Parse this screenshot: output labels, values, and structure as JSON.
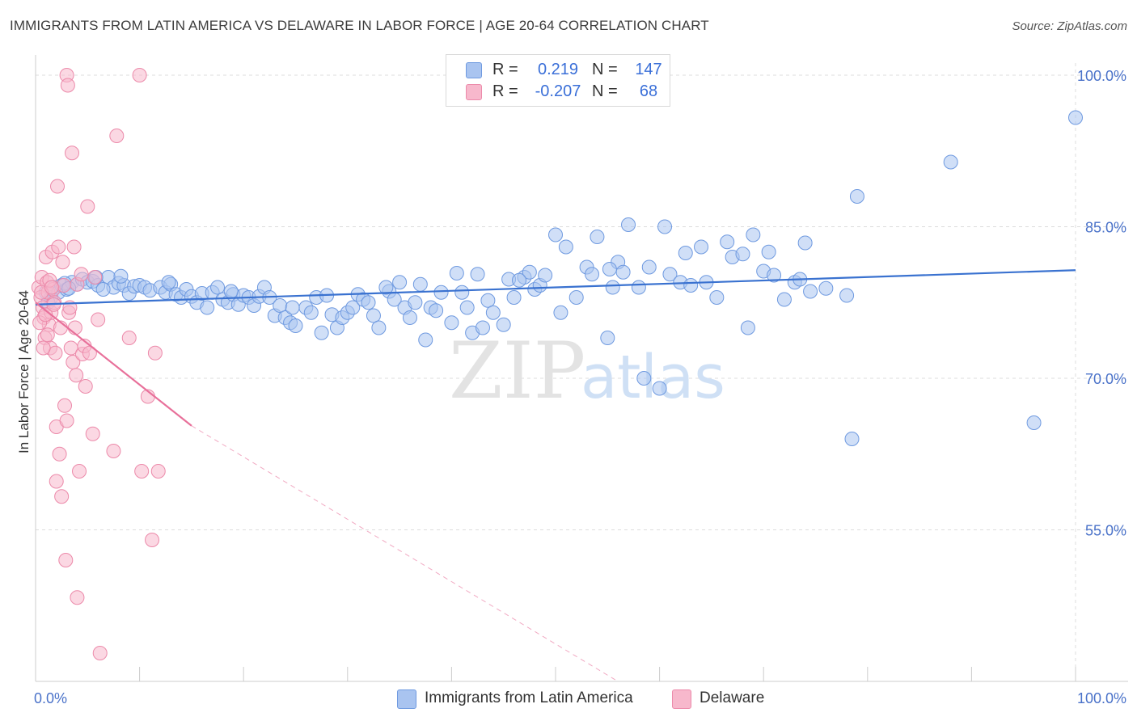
{
  "title": "IMMIGRANTS FROM LATIN AMERICA VS DELAWARE IN LABOR FORCE | AGE 20-64 CORRELATION CHART",
  "source": "Source: ZipAtlas.com",
  "watermark": {
    "zip": "ZIP",
    "atlas": "atlas"
  },
  "legend": {
    "r_label": "R =",
    "n_label": "N =",
    "rows": [
      {
        "r": "0.219",
        "n": "147",
        "color": "#a9c4f0",
        "border": "#6f9ae0"
      },
      {
        "r": "-0.207",
        "n": "68",
        "color": "#f7b8cc",
        "border": "#ec8aaa"
      }
    ]
  },
  "chart_data": {
    "type": "scatter",
    "title": "IMMIGRANTS FROM LATIN AMERICA VS DELAWARE IN LABOR FORCE | AGE 20-64 CORRELATION CHART",
    "xlabel": "",
    "ylabel": "In Labor Force | Age 20-64",
    "xlim": [
      0,
      100
    ],
    "ylim": [
      40,
      102
    ],
    "x_tick_labels": [
      "0.0%",
      "100.0%"
    ],
    "y_ticks": [
      55,
      70,
      85,
      100
    ],
    "y_tick_labels": [
      "55.0%",
      "70.0%",
      "85.0%",
      "100.0%"
    ],
    "grid": true,
    "series": [
      {
        "name": "Immigrants from Latin America",
        "color": "#a9c4f0",
        "edge": "#6f9ae0",
        "trend": {
          "x0": 0,
          "y0": 77.3,
          "x1": 100,
          "y1": 80.7,
          "color": "#3a72d0"
        },
        "points": [
          [
            1,
            78.5
          ],
          [
            1.5,
            78
          ],
          [
            1.8,
            79
          ],
          [
            2.2,
            78.5
          ],
          [
            2.5,
            79.2
          ],
          [
            3,
            78.8
          ],
          [
            3.5,
            79.5
          ],
          [
            4,
            79.3
          ],
          [
            4.5,
            79.8
          ],
          [
            5,
            79.5
          ],
          [
            5.5,
            79.6
          ],
          [
            6,
            79.2
          ],
          [
            7,
            80
          ],
          [
            7.5,
            79
          ],
          [
            8,
            79.4
          ],
          [
            8.5,
            79.2
          ],
          [
            9,
            78.4
          ],
          [
            9.5,
            79.1
          ],
          [
            10,
            79.2
          ],
          [
            10.5,
            79
          ],
          [
            11,
            78.7
          ],
          [
            12,
            79
          ],
          [
            12.5,
            78.5
          ],
          [
            13,
            79.3
          ],
          [
            13.5,
            78.3
          ],
          [
            14,
            78
          ],
          [
            14.5,
            78.8
          ],
          [
            15,
            78.1
          ],
          [
            15.5,
            77.5
          ],
          [
            16,
            78.4
          ],
          [
            16.5,
            77
          ],
          [
            17,
            78.5
          ],
          [
            17.5,
            79
          ],
          [
            18,
            77.8
          ],
          [
            18.5,
            77.5
          ],
          [
            19,
            78.3
          ],
          [
            19.5,
            77.3
          ],
          [
            20,
            78.2
          ],
          [
            20.5,
            78
          ],
          [
            21,
            77.2
          ],
          [
            21.5,
            78.1
          ],
          [
            22,
            79
          ],
          [
            22.5,
            78
          ],
          [
            23,
            76.2
          ],
          [
            23.5,
            77.2
          ],
          [
            24,
            76
          ],
          [
            24.5,
            75.5
          ],
          [
            25,
            75.2
          ],
          [
            26,
            77
          ],
          [
            26.5,
            76.5
          ],
          [
            27,
            78
          ],
          [
            27.5,
            74.5
          ],
          [
            28,
            78.2
          ],
          [
            28.5,
            76.3
          ],
          [
            29,
            75
          ],
          [
            29.5,
            76
          ],
          [
            30,
            76.5
          ],
          [
            30.5,
            77
          ],
          [
            31,
            78.3
          ],
          [
            31.5,
            77.8
          ],
          [
            32,
            77.5
          ],
          [
            32.5,
            76.2
          ],
          [
            33,
            75
          ],
          [
            34,
            78.6
          ],
          [
            34.5,
            77.8
          ],
          [
            35,
            79.5
          ],
          [
            35.5,
            77
          ],
          [
            36,
            76
          ],
          [
            36.5,
            77.5
          ],
          [
            37,
            79.3
          ],
          [
            37.5,
            73.8
          ],
          [
            38,
            77
          ],
          [
            38.5,
            76.7
          ],
          [
            39,
            78.5
          ],
          [
            40,
            75.5
          ],
          [
            41,
            78.5
          ],
          [
            41.5,
            77
          ],
          [
            42,
            74.5
          ],
          [
            42.5,
            80.3
          ],
          [
            43,
            75
          ],
          [
            43.5,
            77.7
          ],
          [
            44,
            76.5
          ],
          [
            45,
            75.3
          ],
          [
            45.5,
            79.8
          ],
          [
            46,
            78
          ],
          [
            47,
            80
          ],
          [
            47.5,
            80.5
          ],
          [
            48,
            78.8
          ],
          [
            48.5,
            79.2
          ],
          [
            49,
            80.2
          ],
          [
            50,
            84.2
          ],
          [
            50.5,
            76.5
          ],
          [
            51,
            83
          ],
          [
            52,
            78
          ],
          [
            53,
            81
          ],
          [
            53.5,
            80.3
          ],
          [
            54,
            84
          ],
          [
            55,
            74
          ],
          [
            55.5,
            79
          ],
          [
            56,
            81.5
          ],
          [
            56.5,
            80.5
          ],
          [
            57,
            85.2
          ],
          [
            58,
            79
          ],
          [
            58.5,
            70
          ],
          [
            59,
            81
          ],
          [
            60,
            69
          ],
          [
            60.5,
            85
          ],
          [
            61,
            80.3
          ],
          [
            62,
            79.5
          ],
          [
            62.5,
            82.4
          ],
          [
            63,
            79.2
          ],
          [
            64,
            83
          ],
          [
            64.5,
            79.5
          ],
          [
            65.5,
            78
          ],
          [
            66.5,
            83.5
          ],
          [
            67,
            82
          ],
          [
            68,
            82.3
          ],
          [
            68.5,
            75
          ],
          [
            69,
            84.2
          ],
          [
            70,
            80.6
          ],
          [
            70.5,
            82.5
          ],
          [
            71,
            80.2
          ],
          [
            72,
            77.8
          ],
          [
            73,
            79.5
          ],
          [
            73.5,
            79.8
          ],
          [
            74,
            83.4
          ],
          [
            74.5,
            78.6
          ],
          [
            76,
            78.9
          ],
          [
            78,
            78.2
          ],
          [
            78.5,
            64
          ],
          [
            79,
            88
          ],
          [
            88,
            91.4
          ],
          [
            96,
            65.6
          ],
          [
            100,
            95.8
          ],
          [
            1.2,
            77.5
          ],
          [
            2.8,
            79.4
          ],
          [
            3.2,
            78.9
          ],
          [
            5.8,
            80
          ],
          [
            6.5,
            78.8
          ],
          [
            8.2,
            80.1
          ],
          [
            12.8,
            79.5
          ],
          [
            18.8,
            78.6
          ],
          [
            24.7,
            77
          ],
          [
            33.7,
            79
          ],
          [
            40.5,
            80.4
          ],
          [
            46.5,
            79.7
          ],
          [
            55.2,
            80.8
          ]
        ]
      },
      {
        "name": "Delaware",
        "color": "#f7b8cc",
        "edge": "#ec8aaa",
        "trend": {
          "x0": 0,
          "y0": 77.5,
          "x1": 15,
          "y1": 65.3,
          "dash_x1": 56,
          "dash_y1": 40,
          "color": "#e8709a"
        },
        "points": [
          [
            0.3,
            79
          ],
          [
            0.5,
            78
          ],
          [
            0.6,
            80
          ],
          [
            0.7,
            77
          ],
          [
            0.8,
            76
          ],
          [
            0.9,
            74
          ],
          [
            1,
            82
          ],
          [
            1.1,
            79.5
          ],
          [
            1.2,
            78.5
          ],
          [
            1.3,
            75.3
          ],
          [
            1.4,
            73
          ],
          [
            1.5,
            76.5
          ],
          [
            1.6,
            82.5
          ],
          [
            1.7,
            78.8
          ],
          [
            1.8,
            77.5
          ],
          [
            1.9,
            72.5
          ],
          [
            2,
            65.2
          ],
          [
            2,
            59.8
          ],
          [
            2.1,
            89
          ],
          [
            2.2,
            83
          ],
          [
            2.3,
            62.5
          ],
          [
            2.4,
            75
          ],
          [
            2.5,
            58.3
          ],
          [
            2.6,
            81.5
          ],
          [
            2.7,
            79.2
          ],
          [
            2.8,
            67.3
          ],
          [
            2.9,
            52
          ],
          [
            3,
            100
          ],
          [
            3,
            65.8
          ],
          [
            3.1,
            99
          ],
          [
            3.2,
            76.5
          ],
          [
            3.3,
            77
          ],
          [
            3.4,
            73
          ],
          [
            3.5,
            92.3
          ],
          [
            3.6,
            71.6
          ],
          [
            3.7,
            83
          ],
          [
            3.8,
            75
          ],
          [
            3.9,
            70.3
          ],
          [
            4,
            48.3
          ],
          [
            4,
            79.3
          ],
          [
            4.2,
            60.8
          ],
          [
            4.4,
            80.3
          ],
          [
            4.5,
            72.4
          ],
          [
            4.7,
            73.2
          ],
          [
            4.8,
            69.2
          ],
          [
            5,
            87
          ],
          [
            5.2,
            72.5
          ],
          [
            5.5,
            64.5
          ],
          [
            5.7,
            80
          ],
          [
            6,
            75.8
          ],
          [
            6.2,
            42.8
          ],
          [
            7.5,
            62.8
          ],
          [
            7.8,
            94
          ],
          [
            9,
            74
          ],
          [
            10,
            100
          ],
          [
            10.2,
            60.8
          ],
          [
            10.8,
            68.2
          ],
          [
            11.2,
            54
          ],
          [
            11.5,
            72.5
          ],
          [
            11.8,
            60.8
          ],
          [
            0.4,
            75.5
          ],
          [
            0.55,
            78.5
          ],
          [
            0.75,
            73
          ],
          [
            0.95,
            76.3
          ],
          [
            1.15,
            74.3
          ],
          [
            1.35,
            79.7
          ],
          [
            1.55,
            79
          ],
          [
            1.75,
            77.3
          ]
        ]
      }
    ]
  },
  "bottom_legend": [
    {
      "label": "Immigrants from Latin America",
      "color": "#a9c4f0",
      "border": "#6f9ae0"
    },
    {
      "label": "Delaware",
      "color": "#f7b8cc",
      "border": "#ec8aaa"
    }
  ]
}
